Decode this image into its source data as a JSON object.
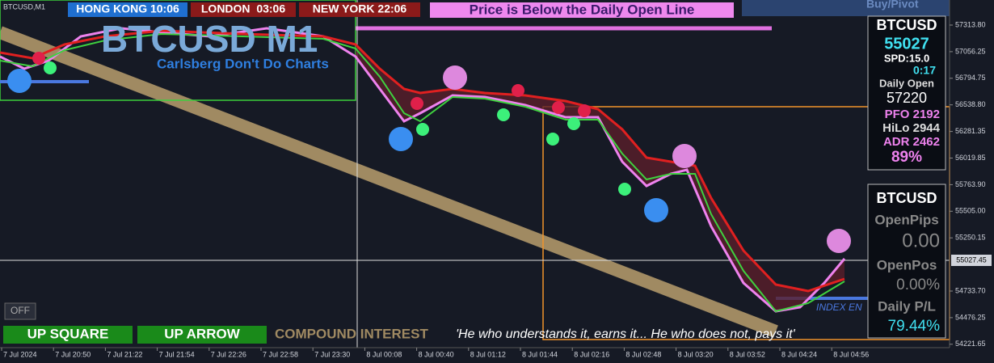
{
  "window": {
    "symbol": "BTCUSD,M1",
    "buy_pivot": "Buy/Pivot"
  },
  "clocks": [
    {
      "label": "HONG KONG 10:06"
    },
    {
      "label": "LONDON  03:06"
    },
    {
      "label": "NEW YORK 22:06"
    }
  ],
  "banner": "Price is Below the Daily Open Line",
  "watermark": {
    "title": "BTCUSD M1",
    "subtitle": "Carlsberg Don't Do Charts"
  },
  "info_panel": {
    "symbol": "BTCUSD",
    "price": "55027",
    "spread": "SPD:15.0",
    "timer": "0:17",
    "daily_open_label": "Daily Open",
    "daily_open": "57220",
    "pfo": "PFO 2192",
    "hilo": "HiLo 2944",
    "adr": "ADR 2462",
    "adr_pct": "89%"
  },
  "pl_panel": {
    "symbol": "BTCUSD",
    "open_pips_label": "OpenPips",
    "open_pips": "0.00",
    "open_pos_label": "OpenPos",
    "open_pos": "0.00%",
    "daily_pl_label": "Daily P/L",
    "daily_pl": "79.44%"
  },
  "index_label": "INDEX EN",
  "bottom_bar": {
    "off": "OFF",
    "up_square": "UP SQUARE",
    "up_arrow": "UP ARROW",
    "compound": "COMPOUND INTEREST",
    "quote": "'He who understands it, earns it... He who does not, pays it'"
  },
  "price_axis": [
    "57313.80",
    "57056.25",
    "56794.75",
    "56538.80",
    "56281.35",
    "56019.85",
    "55763.90",
    "55505.00",
    "55250.15",
    "",
    "54733.70",
    "54476.25",
    "54221.65"
  ],
  "current_price": "55027.45",
  "time_axis": [
    "7 Jul 2024",
    "7 Jul 20:50",
    "7 Jul 21:22",
    "7 Jul 21:54",
    "7 Jul 22:26",
    "7 Jul 22:58",
    "7 Jul 23:30",
    "8 Jul 00:08",
    "8 Jul 00:40",
    "8 Jul 01:12",
    "8 Jul 01:44",
    "8 Jul 02:16",
    "8 Jul 02:48",
    "8 Jul 03:20",
    "8 Jul 03:52",
    "8 Jul 04:24",
    "8 Jul 04:56"
  ]
}
